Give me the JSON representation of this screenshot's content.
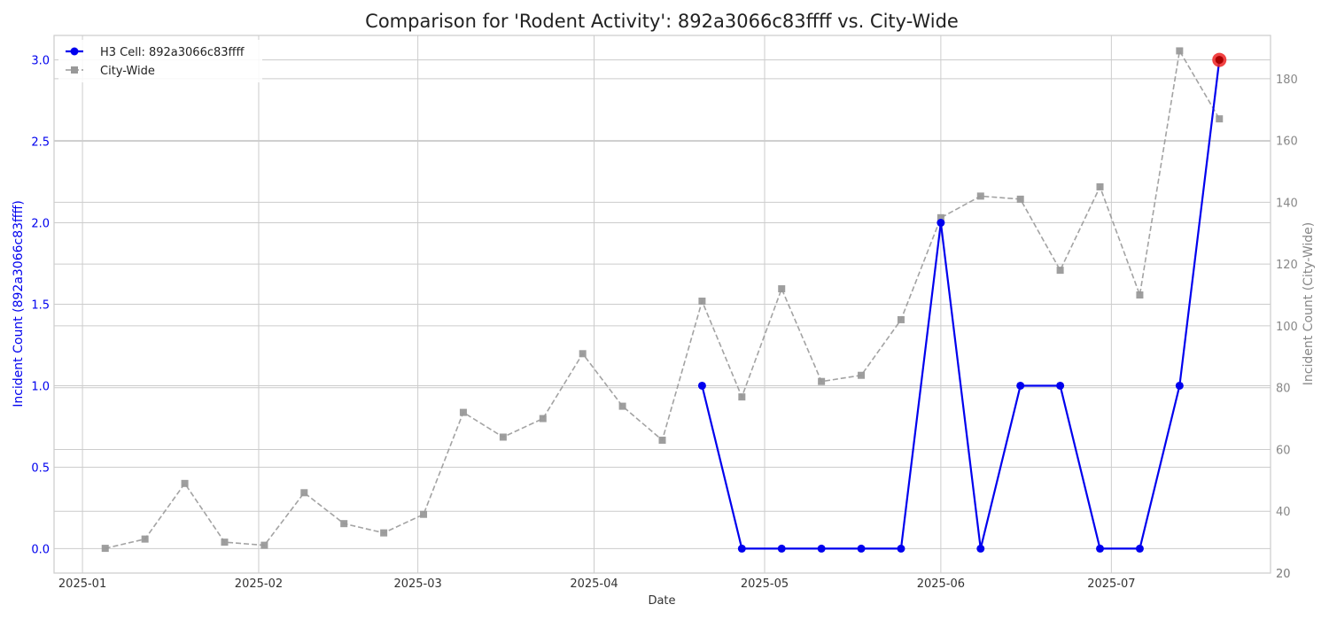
{
  "chart_data": {
    "type": "line",
    "title": "Comparison for 'Rodent Activity': 892a3066c83ffff vs. City-Wide",
    "xlabel": "Date",
    "ylabel_left": "Incident Count (892a3066c83ffff)",
    "ylabel_right": "Incident Count (City-Wide)",
    "x_tick_labels": [
      "2025-01",
      "2025-02",
      "2025-03",
      "2025-04",
      "2025-05",
      "2025-06",
      "2025-07"
    ],
    "x_ticks": [
      "2025-01-01",
      "2025-02-01",
      "2025-03-01",
      "2025-04-01",
      "2025-05-01",
      "2025-06-01",
      "2025-07-01"
    ],
    "xlim": [
      "2024-12-27",
      "2025-07-29"
    ],
    "y_left_ticks": [
      "0.0",
      "0.5",
      "1.0",
      "1.5",
      "2.0",
      "2.5",
      "3.0"
    ],
    "y_left_lim": [
      -0.15,
      3.15
    ],
    "y_right_ticks": [
      "20",
      "40",
      "60",
      "80",
      "100",
      "120",
      "140",
      "160",
      "180"
    ],
    "y_right_lim": [
      20,
      194
    ],
    "grid": true,
    "legend_position": "top-left",
    "series": [
      {
        "name": "H3 Cell: 892a3066c83ffff",
        "axis": "left",
        "color": "#0000ee",
        "style": "solid",
        "marker": "circle",
        "x": [
          "2025-04-20",
          "2025-04-27",
          "2025-05-04",
          "2025-05-11",
          "2025-05-18",
          "2025-05-25",
          "2025-06-01",
          "2025-06-08",
          "2025-06-15",
          "2025-06-22",
          "2025-06-29",
          "2025-07-06",
          "2025-07-13",
          "2025-07-20"
        ],
        "values": [
          1,
          0,
          0,
          0,
          0,
          0,
          2,
          0,
          1,
          1,
          0,
          0,
          1,
          3
        ]
      },
      {
        "name": "City-Wide",
        "axis": "right",
        "color": "#999999",
        "style": "dashed",
        "marker": "square",
        "x": [
          "2025-01-05",
          "2025-01-12",
          "2025-01-19",
          "2025-01-26",
          "2025-02-02",
          "2025-02-09",
          "2025-02-16",
          "2025-02-23",
          "2025-03-02",
          "2025-03-09",
          "2025-03-16",
          "2025-03-23",
          "2025-03-30",
          "2025-04-06",
          "2025-04-13",
          "2025-04-20",
          "2025-04-27",
          "2025-05-04",
          "2025-05-11",
          "2025-05-18",
          "2025-05-25",
          "2025-06-01",
          "2025-06-08",
          "2025-06-15",
          "2025-06-22",
          "2025-06-29",
          "2025-07-06",
          "2025-07-13",
          "2025-07-20"
        ],
        "values": [
          28,
          31,
          49,
          30,
          29,
          46,
          36,
          33,
          39,
          72,
          64,
          70,
          91,
          74,
          63,
          108,
          77,
          112,
          82,
          84,
          102,
          135,
          142,
          141,
          118,
          145,
          110,
          189,
          167
        ]
      }
    ],
    "highlight": {
      "series": "H3 Cell: 892a3066c83ffff",
      "x": "2025-07-20",
      "value": 3,
      "color": "#ee2222"
    }
  }
}
